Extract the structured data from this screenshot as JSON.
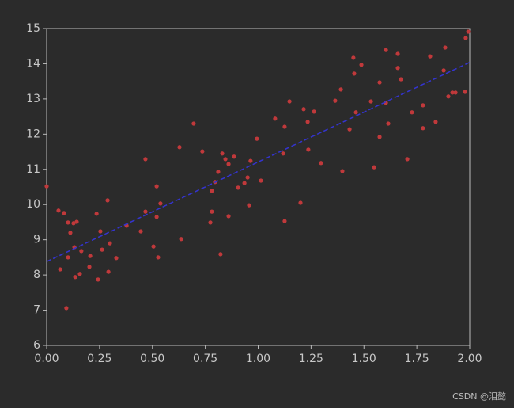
{
  "chart_data": {
    "type": "scatter",
    "xlim": [
      0,
      2
    ],
    "ylim": [
      6,
      15
    ],
    "xticks": [
      {
        "value": 0,
        "label": "0.00"
      },
      {
        "value": 0.25,
        "label": "0.25"
      },
      {
        "value": 0.5,
        "label": "0.50"
      },
      {
        "value": 0.75,
        "label": "0.75"
      },
      {
        "value": 1,
        "label": "1.00"
      },
      {
        "value": 1.25,
        "label": "1.25"
      },
      {
        "value": 1.5,
        "label": "1.50"
      },
      {
        "value": 1.75,
        "label": "1.75"
      },
      {
        "value": 2,
        "label": "2.00"
      }
    ],
    "yticks": [
      6,
      7,
      8,
      9,
      10,
      11,
      12,
      13,
      14,
      15
    ],
    "series": [
      {
        "type": "scatter",
        "color": "#c0393b",
        "x": [
          0,
          0.056,
          0.082,
          0.064,
          0.093,
          0.101,
          0.112,
          0.101,
          0.127,
          0.142,
          0.131,
          0.135,
          0.164,
          0.157,
          0.202,
          0.206,
          0.236,
          0.254,
          0.243,
          0.262,
          0.288,
          0.299,
          0.292,
          0.329,
          0.378,
          0.445,
          0.467,
          0.467,
          0.505,
          0.52,
          0.52,
          0.527,
          0.538,
          0.628,
          0.636,
          0.695,
          0.736,
          0.774,
          0.781,
          0.781,
          0.796,
          0.811,
          0.822,
          0.83,
          0.845,
          0.86,
          0.86,
          0.886,
          0.905,
          0.935,
          0.95,
          0.957,
          0.964,
          0.994,
          1.013,
          1.08,
          1.118,
          1.125,
          1.125,
          1.148,
          1.2,
          1.215,
          1.234,
          1.237,
          1.264,
          1.297,
          1.364,
          1.391,
          1.398,
          1.432,
          1.45,
          1.454,
          1.462,
          1.488,
          1.533,
          1.548,
          1.574,
          1.574,
          1.604,
          1.604,
          1.615,
          1.66,
          1.66,
          1.675,
          1.705,
          1.727,
          1.779,
          1.779,
          1.813,
          1.839,
          1.877,
          1.884,
          1.899,
          1.918,
          1.933,
          1.978,
          1.981,
          1.993
        ],
        "values": [
          10.52,
          9.83,
          9.76,
          8.16,
          7.06,
          9.49,
          9.2,
          8.5,
          9.47,
          9.51,
          8.79,
          7.94,
          8.68,
          8.03,
          8.23,
          8.54,
          9.74,
          9.24,
          7.87,
          8.72,
          10.12,
          8.9,
          8.09,
          8.48,
          9.4,
          9.24,
          9.8,
          11.29,
          8.81,
          9.65,
          10.52,
          8.5,
          10.03,
          11.63,
          9.02,
          12.3,
          11.51,
          9.49,
          10.39,
          9.8,
          10.64,
          10.93,
          8.59,
          11.45,
          11.29,
          11.15,
          9.67,
          11.36,
          10.48,
          10.61,
          10.77,
          9.98,
          11.24,
          11.87,
          10.68,
          12.44,
          11.45,
          12.21,
          9.53,
          12.93,
          10.05,
          12.71,
          12.35,
          11.56,
          12.64,
          11.18,
          12.95,
          13.27,
          10.95,
          12.14,
          14.17,
          13.72,
          12.62,
          13.97,
          12.93,
          11.06,
          13.47,
          11.92,
          14.39,
          12.89,
          12.3,
          14.28,
          13.88,
          13.56,
          11.29,
          12.62,
          12.82,
          12.17,
          14.21,
          12.35,
          13.81,
          14.46,
          13.07,
          13.18,
          13.18,
          13.2,
          14.73,
          14.91
        ]
      },
      {
        "type": "line",
        "color": "#3434d0",
        "dashed": true,
        "x": [
          0,
          2
        ],
        "values": [
          8.38,
          14.04
        ]
      }
    ]
  },
  "watermark": "CSDN @泪懿"
}
